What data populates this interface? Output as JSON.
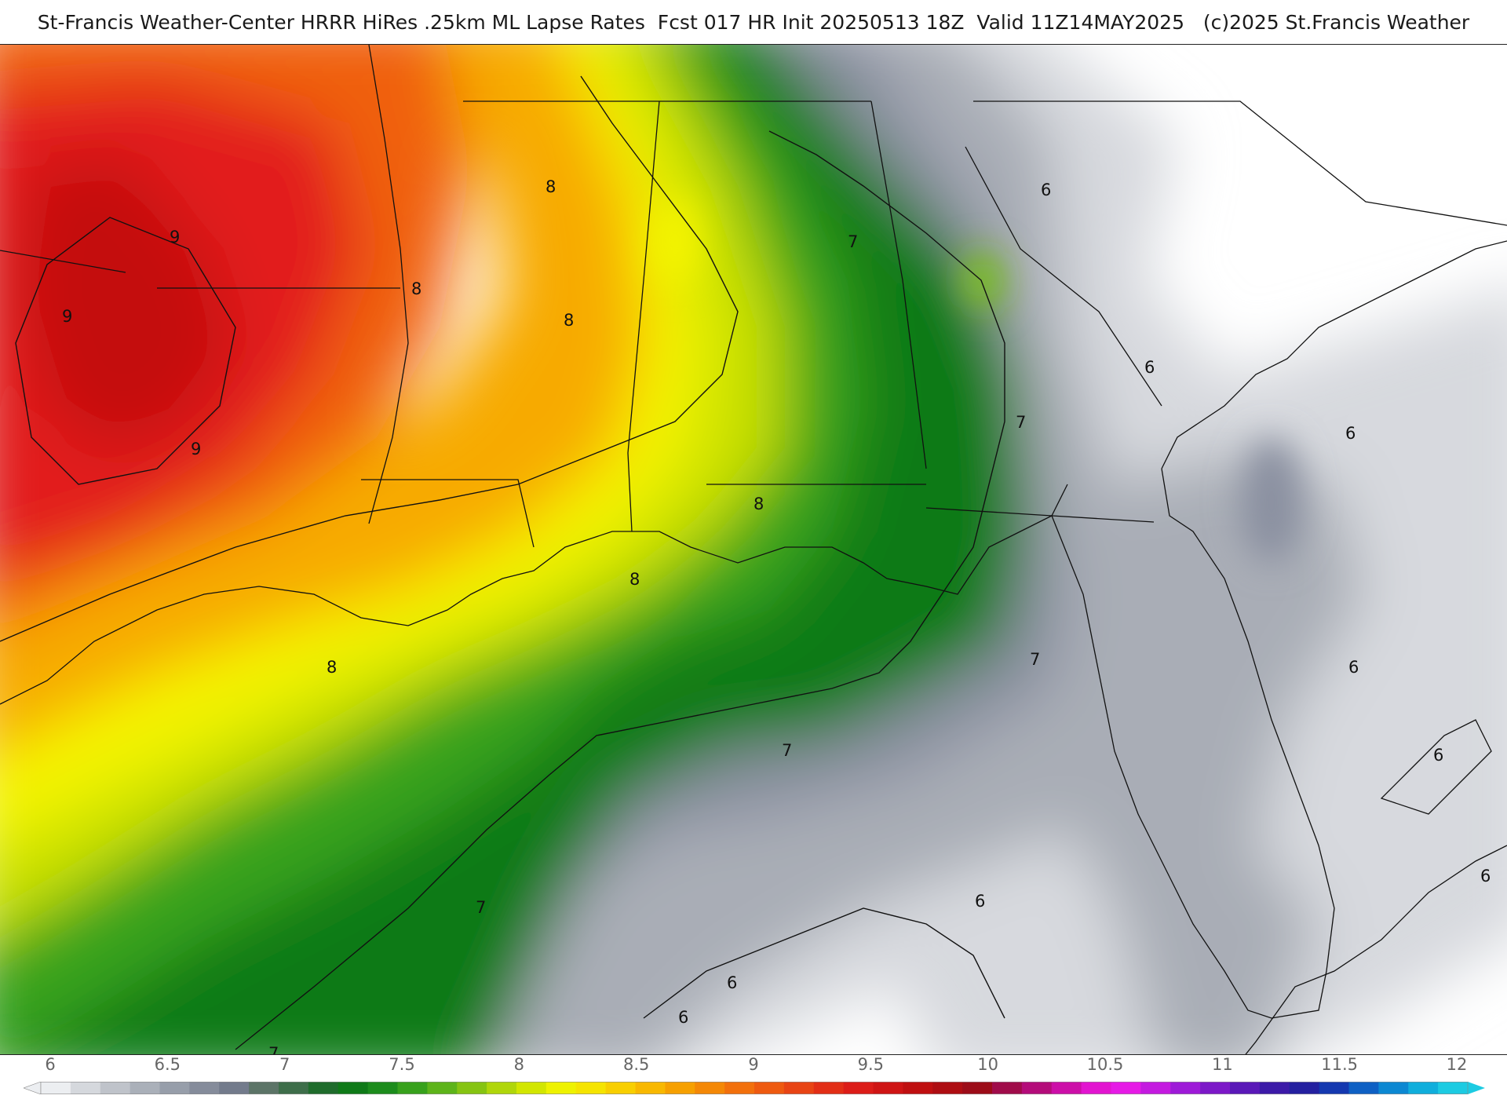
{
  "header": {
    "title": "St-Francis Weather-Center HRRR HiRes .25km ML Lapse Rates  Fcst 017 HR Init 20250513 18Z  Valid 11Z14MAY2025   (c)2025 St.Francis Weather"
  },
  "map": {
    "type": "filled contour map",
    "field": "ML Lapse Rates",
    "region": "southeastern United States, Gulf of Mexico, western Atlantic",
    "contour_labels": [
      "9",
      "9",
      "9",
      "8",
      "8",
      "8",
      "8",
      "8",
      "8",
      "7",
      "7",
      "7",
      "7",
      "7",
      "7",
      "6",
      "6",
      "6",
      "6",
      "6",
      "6",
      "6",
      "6",
      "6"
    ],
    "colors": {
      "land_above_range": "#ffffff",
      "ocean": "#ffffff",
      "grey_light": "#d7d9de",
      "grey_mid": "#a9adb6",
      "grey_dark": "#8a90a0",
      "green_dark": "#0a7a12",
      "green_mid": "#2e9e1a",
      "yellow_green": "#c9e000",
      "yellow": "#f4f400",
      "orange": "#f6a400",
      "orange_red": "#f06010",
      "red": "#e21a1a",
      "dark_red": "#c40c0c"
    }
  },
  "colorbar": {
    "tick_labels": [
      "6",
      "6.5",
      "7",
      "7.5",
      "8",
      "8.5",
      "9",
      "9.5",
      "10",
      "10.5",
      "11",
      "11.5",
      "12"
    ],
    "colors": [
      "#eceef1",
      "#d5d8dd",
      "#bfc3ca",
      "#aab0b9",
      "#979eaa",
      "#858c9b",
      "#737b8c",
      "#5c7467",
      "#3e6e4a",
      "#1f6c2c",
      "#0f7a18",
      "#1c8c1c",
      "#37a11c",
      "#5db41a",
      "#86c412",
      "#b0d60a",
      "#d2e600",
      "#eef200",
      "#f5e400",
      "#f8cf00",
      "#f8b800",
      "#f6a000",
      "#f48806",
      "#f2700c",
      "#ee5a10",
      "#e84414",
      "#e22e16",
      "#dc1c18",
      "#cf1414",
      "#bf0f10",
      "#ae0d12",
      "#9c0c18",
      "#a00c4a",
      "#b40c7a",
      "#cc0ea8",
      "#e214d0",
      "#e61ae6",
      "#c41ae0",
      "#9e1ad8",
      "#7c18c8",
      "#5a18b8",
      "#3c1aa8",
      "#2420a0",
      "#1438b0",
      "#0e60c4",
      "#0c88d2",
      "#10aedc",
      "#1ccbe2"
    ]
  }
}
